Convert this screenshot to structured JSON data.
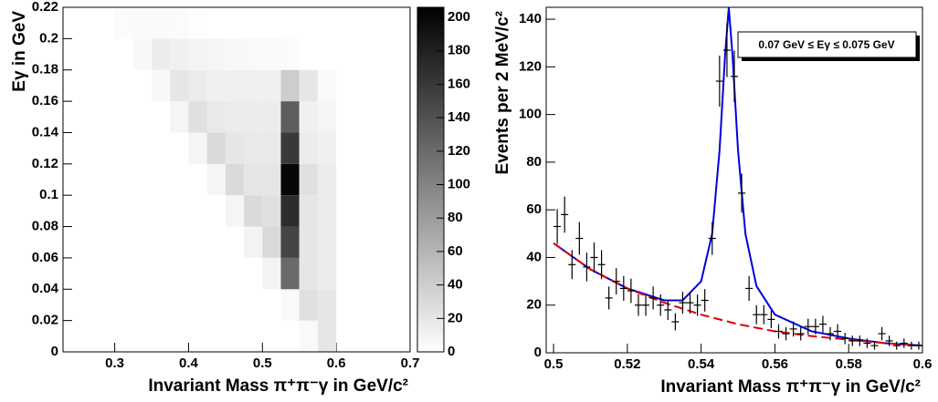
{
  "chart_data": [
    {
      "type": "heatmap",
      "x_label": "Invariant Mass π⁺π⁻γ   in GeV/c²",
      "y_label": "Eγ   in GeV",
      "x_bins": [
        0.3,
        0.325,
        0.35,
        0.375,
        0.4,
        0.425,
        0.45,
        0.475,
        0.5,
        0.525,
        0.55,
        0.575,
        0.6,
        0.625
      ],
      "y_bins": [
        0,
        0.02,
        0.04,
        0.06,
        0.08,
        0.1,
        0.12,
        0.14,
        0.16,
        0.18,
        0.2,
        0.22
      ],
      "z": [
        [
          0,
          0,
          0,
          0,
          0,
          0,
          0,
          0,
          0,
          0,
          5,
          20,
          0
        ],
        [
          0,
          0,
          0,
          0,
          0,
          0,
          0,
          0,
          0,
          5,
          25,
          20,
          0
        ],
        [
          0,
          0,
          0,
          0,
          0,
          0,
          0,
          0,
          10,
          120,
          20,
          15,
          0
        ],
        [
          0,
          0,
          0,
          0,
          0,
          0,
          0,
          10,
          30,
          150,
          20,
          15,
          0
        ],
        [
          0,
          0,
          0,
          0,
          0,
          0,
          8,
          30,
          25,
          170,
          20,
          15,
          0
        ],
        [
          0,
          0,
          0,
          0,
          0,
          8,
          30,
          20,
          20,
          200,
          25,
          15,
          0
        ],
        [
          0,
          0,
          0,
          0,
          8,
          30,
          20,
          18,
          18,
          160,
          15,
          12,
          0
        ],
        [
          0,
          0,
          0,
          8,
          25,
          18,
          15,
          15,
          15,
          130,
          12,
          8,
          0
        ],
        [
          0,
          0,
          6,
          20,
          15,
          12,
          12,
          12,
          12,
          40,
          20,
          5,
          0
        ],
        [
          0,
          6,
          15,
          12,
          10,
          8,
          6,
          5,
          4,
          3,
          0,
          0,
          0
        ],
        [
          3,
          4,
          4,
          3,
          2,
          0,
          0,
          0,
          0,
          0,
          0,
          0,
          0
        ]
      ],
      "xlim": [
        0.23,
        0.7
      ],
      "xticks": [
        0.3,
        0.4,
        0.5,
        0.6,
        0.7
      ],
      "ylim": [
        0,
        0.22
      ],
      "yticks": [
        0,
        0.02,
        0.04,
        0.06,
        0.08,
        0.1,
        0.12,
        0.14,
        0.16,
        0.18,
        0.2,
        0.22
      ],
      "zlim": [
        0,
        206
      ],
      "zticks": [
        0,
        20,
        40,
        60,
        80,
        100,
        120,
        140,
        160,
        180,
        200
      ]
    },
    {
      "type": "errorbar",
      "x_label": "Invariant Mass π⁺π⁻γ   in GeV/c²",
      "y_label": "Events per 2 MeV/c²",
      "annotation": "0.07 GeV ≤ Eγ ≤ 0.075 GeV",
      "x": [
        0.501,
        0.503,
        0.505,
        0.507,
        0.509,
        0.511,
        0.513,
        0.515,
        0.517,
        0.519,
        0.521,
        0.523,
        0.525,
        0.527,
        0.529,
        0.531,
        0.533,
        0.535,
        0.537,
        0.539,
        0.541,
        0.543,
        0.545,
        0.547,
        0.549,
        0.551,
        0.553,
        0.555,
        0.557,
        0.559,
        0.561,
        0.563,
        0.565,
        0.567,
        0.569,
        0.571,
        0.573,
        0.575,
        0.577,
        0.579,
        0.581,
        0.583,
        0.585,
        0.587,
        0.589,
        0.591,
        0.593,
        0.595,
        0.597,
        0.599
      ],
      "values": [
        53,
        58,
        37,
        48,
        36,
        40,
        37,
        23,
        30,
        27,
        26,
        20,
        20,
        23,
        20,
        18,
        13,
        21,
        21,
        20,
        22,
        48,
        114,
        127,
        116,
        67,
        27,
        16,
        16,
        14,
        9,
        8,
        10,
        8,
        11,
        11,
        12,
        8,
        9,
        6,
        5,
        5,
        4,
        3,
        8,
        5,
        3,
        4,
        3,
        3
      ],
      "errors": [
        7.3,
        7.6,
        6.1,
        6.9,
        6,
        6.3,
        6.1,
        4.8,
        5.5,
        5.2,
        5.1,
        4.5,
        4.5,
        4.8,
        4.5,
        4.2,
        3.6,
        4.6,
        4.6,
        4.5,
        4.7,
        6.9,
        10.7,
        11.3,
        10.8,
        8.2,
        5.2,
        4,
        4,
        3.7,
        3,
        2.8,
        3.2,
        2.8,
        3.3,
        3.3,
        3.5,
        2.8,
        3,
        2.4,
        2.2,
        2.2,
        2,
        1.7,
        2.8,
        2.2,
        1.7,
        2,
        1.7,
        1.7
      ],
      "xerr": 0.001,
      "curves": [
        {
          "color": "#0000e0",
          "style": "solid",
          "x": [
            0.5,
            0.51,
            0.52,
            0.53,
            0.535,
            0.54,
            0.543,
            0.545,
            0.5465,
            0.5475,
            0.5485,
            0.55,
            0.552,
            0.555,
            0.56,
            0.57,
            0.58,
            0.59,
            0.6
          ],
          "values": [
            46,
            35,
            27,
            22,
            22,
            30,
            50,
            85,
            125,
            145,
            125,
            85,
            50,
            28,
            16,
            9,
            6,
            4,
            3
          ]
        },
        {
          "color": "#e00000",
          "style": "dashed",
          "x": [
            0.5,
            0.51,
            0.52,
            0.53,
            0.54,
            0.55,
            0.56,
            0.57,
            0.58,
            0.59,
            0.6
          ],
          "values": [
            46,
            35,
            27,
            21,
            16,
            12,
            9,
            7,
            5.5,
            4,
            3
          ]
        }
      ],
      "xlim": [
        0.498,
        0.6
      ],
      "xticks": [
        0.5,
        0.52,
        0.54,
        0.56,
        0.58,
        0.6
      ],
      "ylim": [
        0,
        145
      ],
      "yticks": [
        0,
        20,
        40,
        60,
        80,
        100,
        120,
        140
      ]
    }
  ]
}
